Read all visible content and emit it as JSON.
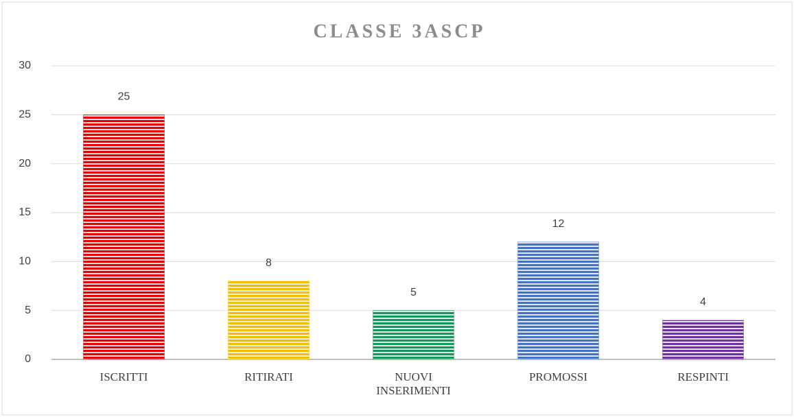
{
  "chart_data": {
    "type": "bar",
    "title": "CLASSE 3ASCP",
    "categories": [
      "ISCRITTI",
      "RITIRATI",
      "NUOVI INSERIMENTI",
      "PROMOSSI",
      "RESPINTI"
    ],
    "values": [
      25,
      8,
      5,
      12,
      4
    ],
    "colors": [
      "#e60000",
      "#f2bf00",
      "#12985a",
      "#4472c4",
      "#7030a0"
    ],
    "ylim": [
      0,
      30
    ],
    "yticks": [
      0,
      5,
      10,
      15,
      20,
      25,
      30
    ],
    "grid": true
  }
}
